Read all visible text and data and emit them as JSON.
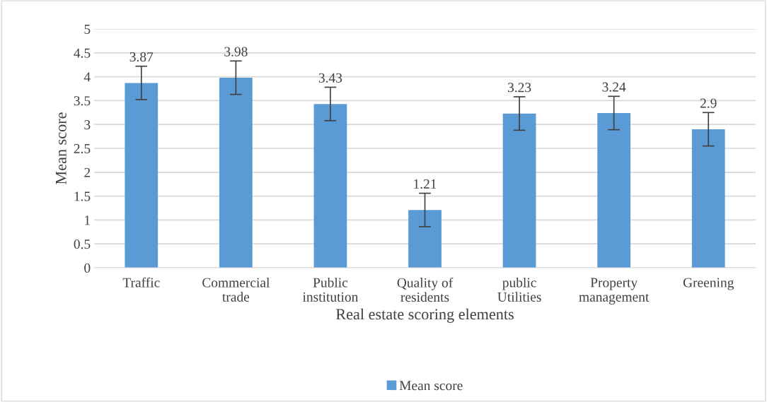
{
  "chart_data": {
    "type": "bar",
    "xlabel": "Real estate scoring elements",
    "ylabel": "Mean score",
    "categories": [
      "Traffic",
      "Commercial\ntrade",
      "Public\ninstitution",
      "Quality of\nresidents",
      "public\nUtilities",
      "Property\nmanagement",
      "Greening"
    ],
    "series": [
      {
        "name": "Mean score",
        "color": "#5b9bd5",
        "values": [
          3.87,
          3.98,
          3.43,
          1.21,
          3.23,
          3.24,
          2.9
        ],
        "errors": [
          0.35,
          0.35,
          0.35,
          0.35,
          0.35,
          0.35,
          0.35
        ]
      }
    ],
    "ylim": [
      0,
      5
    ],
    "yticks": [
      0,
      0.5,
      1,
      1.5,
      2,
      2.5,
      3,
      3.5,
      4,
      4.5,
      5
    ],
    "data_labels": true,
    "grid": "y",
    "legend": "bottom"
  }
}
